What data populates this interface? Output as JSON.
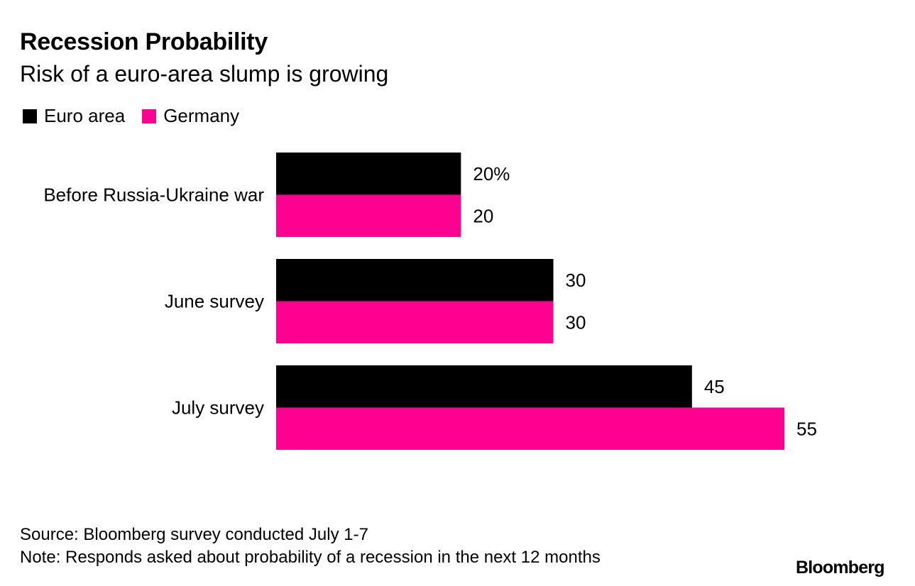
{
  "title": "Recession Probability",
  "subtitle": "Risk of a euro-area slump is growing",
  "legend": [
    {
      "label": "Euro area",
      "color": "#000000"
    },
    {
      "label": "Germany",
      "color": "#ff0090"
    }
  ],
  "footer": {
    "source": "Source: Bloomberg survey conducted July 1-7",
    "note": "Note: Responds asked about probability of a recession in the next 12 months",
    "logo": "Bloomberg"
  },
  "chart_data": {
    "type": "bar",
    "orientation": "horizontal",
    "categories": [
      "Before Russia-Ukraine war",
      "June survey",
      "July survey"
    ],
    "series": [
      {
        "name": "Euro area",
        "color": "#000000",
        "values": [
          20,
          30,
          45
        ],
        "labels": [
          "20%",
          "30",
          "45"
        ]
      },
      {
        "name": "Germany",
        "color": "#ff0090",
        "values": [
          20,
          30,
          55
        ],
        "labels": [
          "20",
          "30",
          "55"
        ]
      }
    ],
    "xlim": [
      0,
      55
    ],
    "grid": false,
    "legend_position": "top-left"
  }
}
